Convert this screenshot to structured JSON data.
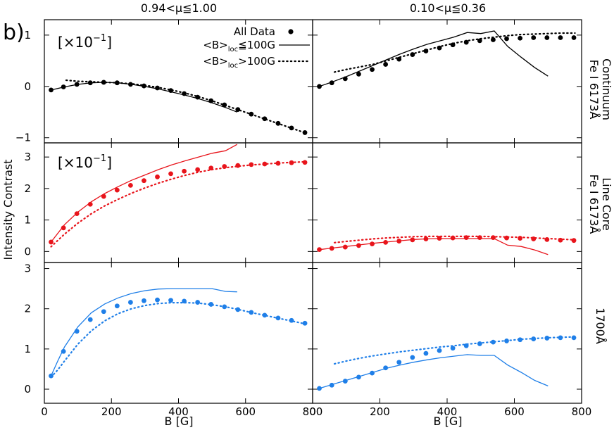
{
  "figure": {
    "panel_letter": "b)",
    "ylabel": "Intensity Contrast",
    "xlabel": "B [G]",
    "column_titles": [
      "0.94<μ≦1.00",
      "0.10<μ≦0.36"
    ],
    "row_labels": [
      {
        "line1": "Fe I 6173Å",
        "line2": "Continuum"
      },
      {
        "line1": "Fe I 6173Å",
        "line2": "Line Core"
      },
      {
        "line1": "1700Å",
        "line2": ""
      }
    ],
    "scale_note_main": "[×10",
    "scale_note_exp": "−1",
    "scale_note_end": "]",
    "legend": {
      "all_data": "All Data",
      "low_pre": "<B>",
      "low_sub": "loc",
      "low_post": "≦100G",
      "high_pre": "<B>",
      "high_sub": "loc",
      "high_post": ">100G"
    },
    "colors": {
      "row1": "#000000",
      "row2": "#e8141b",
      "row3": "#1f7fe8"
    }
  },
  "chart_data": [
    {
      "type": "scatter",
      "row": 0,
      "col": 0,
      "xlim": [
        0,
        800
      ],
      "ylim": [
        -1.1,
        1.3
      ],
      "yticks": [
        -1,
        0,
        1
      ],
      "xticks": [
        0,
        200,
        400,
        600,
        800
      ],
      "yscale_note": "×10⁻¹",
      "series": [
        {
          "name": "All Data",
          "style": "dots",
          "x": [
            20,
            57,
            97,
            137,
            177,
            217,
            257,
            297,
            337,
            377,
            417,
            457,
            497,
            537,
            577,
            617,
            657,
            697,
            737,
            777
          ],
          "y": [
            -0.07,
            -0.01,
            0.04,
            0.07,
            0.08,
            0.07,
            0.04,
            0.01,
            -0.03,
            -0.08,
            -0.14,
            -0.21,
            -0.28,
            -0.36,
            -0.45,
            -0.54,
            -0.63,
            -0.72,
            -0.81,
            -0.9
          ]
        },
        {
          "name": "<B>loc≦100G",
          "style": "solid",
          "x": [
            20,
            60,
            100,
            140,
            180,
            220,
            260,
            300,
            340,
            380,
            420,
            460,
            500,
            540,
            575
          ],
          "y": [
            -0.07,
            -0.01,
            0.04,
            0.07,
            0.08,
            0.07,
            0.04,
            0.0,
            -0.05,
            -0.11,
            -0.17,
            -0.24,
            -0.32,
            -0.41,
            -0.5
          ]
        },
        {
          "name": "<B>loc>100G",
          "style": "dotted",
          "x": [
            65,
            100,
            140,
            180,
            220,
            260,
            300,
            340,
            380,
            420,
            460,
            500,
            540,
            580,
            620,
            660,
            700,
            740,
            780
          ],
          "y": [
            0.12,
            0.1,
            0.09,
            0.08,
            0.07,
            0.05,
            0.02,
            -0.02,
            -0.07,
            -0.13,
            -0.2,
            -0.28,
            -0.37,
            -0.46,
            -0.55,
            -0.64,
            -0.73,
            -0.82,
            -0.91
          ]
        }
      ]
    },
    {
      "type": "scatter",
      "row": 0,
      "col": 1,
      "xlim": [
        0,
        800
      ],
      "ylim": [
        -1.1,
        1.3
      ],
      "yticks": [
        -1,
        0,
        1
      ],
      "xticks": [
        0,
        200,
        400,
        600,
        800
      ],
      "series": [
        {
          "name": "All Data",
          "style": "dots",
          "x": [
            20,
            57,
            97,
            137,
            177,
            217,
            257,
            297,
            337,
            377,
            417,
            457,
            497,
            537,
            577,
            617,
            657,
            697,
            737,
            777
          ],
          "y": [
            0.0,
            0.07,
            0.15,
            0.24,
            0.33,
            0.43,
            0.53,
            0.62,
            0.69,
            0.75,
            0.81,
            0.86,
            0.89,
            0.91,
            0.93,
            0.94,
            0.95,
            0.95,
            0.95,
            0.95
          ]
        },
        {
          "name": "<B>loc≦100G",
          "style": "solid",
          "x": [
            20,
            60,
            100,
            140,
            180,
            220,
            260,
            300,
            340,
            380,
            420,
            460,
            500,
            540,
            580,
            620,
            660,
            700
          ],
          "y": [
            0.0,
            0.09,
            0.19,
            0.3,
            0.41,
            0.52,
            0.63,
            0.73,
            0.82,
            0.89,
            0.96,
            1.05,
            1.03,
            1.08,
            0.78,
            0.57,
            0.37,
            0.2
          ]
        },
        {
          "name": "<B>loc>100G",
          "style": "dotted",
          "x": [
            65,
            100,
            140,
            180,
            220,
            260,
            300,
            340,
            380,
            420,
            460,
            500,
            540,
            580,
            620,
            660,
            700,
            740,
            780
          ],
          "y": [
            0.28,
            0.33,
            0.38,
            0.43,
            0.5,
            0.57,
            0.64,
            0.71,
            0.78,
            0.84,
            0.89,
            0.93,
            0.96,
            0.99,
            1.01,
            1.02,
            1.03,
            1.04,
            1.04
          ]
        }
      ]
    },
    {
      "type": "scatter",
      "row": 1,
      "col": 0,
      "xlim": [
        0,
        800
      ],
      "ylim": [
        -0.35,
        3.45
      ],
      "yticks": [
        0,
        1,
        2,
        3
      ],
      "xticks": [
        0,
        200,
        400,
        600,
        800
      ],
      "yscale_note": "×10⁻¹",
      "series": [
        {
          "name": "All Data",
          "style": "dots",
          "x": [
            20,
            57,
            97,
            137,
            177,
            217,
            257,
            297,
            337,
            377,
            417,
            457,
            497,
            537,
            577,
            617,
            657,
            697,
            737,
            777
          ],
          "y": [
            0.3,
            0.75,
            1.2,
            1.5,
            1.75,
            1.95,
            2.1,
            2.25,
            2.37,
            2.47,
            2.55,
            2.6,
            2.65,
            2.7,
            2.73,
            2.76,
            2.78,
            2.8,
            2.82,
            2.83
          ]
        },
        {
          "name": "<B>loc≦100G",
          "style": "solid",
          "x": [
            20,
            60,
            100,
            140,
            180,
            220,
            260,
            300,
            340,
            380,
            420,
            460,
            500,
            540,
            575
          ],
          "y": [
            0.3,
            0.85,
            1.25,
            1.58,
            1.84,
            2.06,
            2.26,
            2.43,
            2.6,
            2.75,
            2.88,
            3.0,
            3.12,
            3.2,
            3.4
          ]
        },
        {
          "name": "<B>loc>100G",
          "style": "dotted",
          "x": [
            20,
            60,
            100,
            140,
            180,
            220,
            260,
            300,
            340,
            380,
            420,
            460,
            500,
            540,
            580,
            620,
            660,
            700,
            740,
            780
          ],
          "y": [
            0.15,
            0.55,
            0.9,
            1.2,
            1.45,
            1.66,
            1.85,
            2.02,
            2.17,
            2.3,
            2.42,
            2.52,
            2.6,
            2.66,
            2.71,
            2.75,
            2.78,
            2.81,
            2.83,
            2.85
          ]
        }
      ]
    },
    {
      "type": "scatter",
      "row": 1,
      "col": 1,
      "xlim": [
        0,
        800
      ],
      "ylim": [
        -0.35,
        3.45
      ],
      "yticks": [
        0,
        1,
        2,
        3
      ],
      "xticks": [
        0,
        200,
        400,
        600,
        800
      ],
      "series": [
        {
          "name": "All Data",
          "style": "dots",
          "x": [
            20,
            57,
            97,
            137,
            177,
            217,
            257,
            297,
            337,
            377,
            417,
            457,
            497,
            537,
            577,
            617,
            657,
            697,
            737,
            777
          ],
          "y": [
            0.06,
            0.1,
            0.14,
            0.19,
            0.24,
            0.29,
            0.33,
            0.37,
            0.4,
            0.42,
            0.43,
            0.44,
            0.44,
            0.44,
            0.43,
            0.42,
            0.4,
            0.38,
            0.36,
            0.35
          ]
        },
        {
          "name": "<B>loc≦100G",
          "style": "solid",
          "x": [
            20,
            60,
            100,
            140,
            180,
            220,
            260,
            300,
            340,
            380,
            420,
            460,
            500,
            540,
            580,
            620,
            660,
            700
          ],
          "y": [
            0.06,
            0.11,
            0.16,
            0.21,
            0.26,
            0.3,
            0.34,
            0.38,
            0.4,
            0.41,
            0.41,
            0.41,
            0.41,
            0.41,
            0.2,
            0.16,
            0.05,
            -0.1
          ]
        },
        {
          "name": "<B>loc>100G",
          "style": "dotted",
          "x": [
            65,
            100,
            140,
            180,
            220,
            260,
            300,
            340,
            380,
            420,
            460,
            500,
            540,
            580,
            620,
            660,
            700,
            740,
            780
          ],
          "y": [
            0.28,
            0.32,
            0.36,
            0.4,
            0.43,
            0.45,
            0.47,
            0.48,
            0.48,
            0.48,
            0.48,
            0.48,
            0.47,
            0.46,
            0.45,
            0.43,
            0.41,
            0.39,
            0.37
          ]
        }
      ]
    },
    {
      "type": "scatter",
      "row": 2,
      "col": 0,
      "xlim": [
        0,
        800
      ],
      "ylim": [
        -0.35,
        3.15
      ],
      "yticks": [
        0,
        1,
        2,
        3
      ],
      "xticks": [
        0,
        200,
        400,
        600,
        800
      ],
      "series": [
        {
          "name": "All Data",
          "style": "dots",
          "x": [
            20,
            57,
            97,
            137,
            177,
            217,
            257,
            297,
            337,
            377,
            417,
            457,
            497,
            537,
            577,
            617,
            657,
            697,
            737,
            777
          ],
          "y": [
            0.33,
            0.94,
            1.44,
            1.73,
            1.93,
            2.07,
            2.16,
            2.2,
            2.22,
            2.21,
            2.19,
            2.16,
            2.11,
            2.05,
            1.98,
            1.91,
            1.84,
            1.77,
            1.71,
            1.64
          ]
        },
        {
          "name": "<B>loc≦100G",
          "style": "solid",
          "x": [
            20,
            40,
            60,
            100,
            140,
            180,
            220,
            260,
            300,
            340,
            380,
            420,
            460,
            500,
            540,
            575
          ],
          "y": [
            0.33,
            0.7,
            1.05,
            1.55,
            1.9,
            2.12,
            2.27,
            2.38,
            2.45,
            2.49,
            2.5,
            2.5,
            2.5,
            2.5,
            2.43,
            2.42
          ]
        },
        {
          "name": "<B>loc>100G",
          "style": "dotted",
          "x": [
            20,
            40,
            60,
            100,
            140,
            180,
            220,
            260,
            300,
            340,
            380,
            420,
            460,
            500,
            540,
            580,
            620,
            660,
            700,
            740,
            780
          ],
          "y": [
            0.3,
            0.48,
            0.7,
            1.12,
            1.45,
            1.7,
            1.88,
            2.0,
            2.08,
            2.13,
            2.15,
            2.15,
            2.14,
            2.1,
            2.05,
            1.98,
            1.9,
            1.83,
            1.76,
            1.69,
            1.62
          ]
        }
      ]
    },
    {
      "type": "scatter",
      "row": 2,
      "col": 1,
      "xlim": [
        0,
        800
      ],
      "ylim": [
        -0.35,
        3.15
      ],
      "yticks": [
        0,
        1,
        2,
        3
      ],
      "xticks": [
        0,
        200,
        400,
        600,
        800
      ],
      "series": [
        {
          "name": "All Data",
          "style": "dots",
          "x": [
            20,
            57,
            97,
            137,
            177,
            217,
            257,
            297,
            337,
            377,
            417,
            457,
            497,
            537,
            577,
            617,
            657,
            697,
            737,
            777
          ],
          "y": [
            0.02,
            0.1,
            0.2,
            0.3,
            0.4,
            0.53,
            0.67,
            0.79,
            0.89,
            0.96,
            1.02,
            1.08,
            1.13,
            1.17,
            1.2,
            1.23,
            1.25,
            1.27,
            1.28,
            1.28
          ]
        },
        {
          "name": "<B>loc≦100G",
          "style": "solid",
          "x": [
            20,
            60,
            100,
            140,
            180,
            220,
            260,
            300,
            340,
            380,
            420,
            460,
            500,
            540,
            580,
            620,
            660,
            700
          ],
          "y": [
            0.02,
            0.12,
            0.22,
            0.32,
            0.42,
            0.52,
            0.6,
            0.67,
            0.73,
            0.78,
            0.82,
            0.86,
            0.84,
            0.84,
            0.6,
            0.42,
            0.22,
            0.08
          ]
        },
        {
          "name": "<B>loc>100G",
          "style": "dotted",
          "x": [
            65,
            100,
            140,
            180,
            220,
            260,
            300,
            340,
            380,
            420,
            460,
            500,
            540,
            580,
            620,
            660,
            700,
            740,
            780
          ],
          "y": [
            0.63,
            0.7,
            0.77,
            0.83,
            0.88,
            0.93,
            0.97,
            1.01,
            1.05,
            1.08,
            1.12,
            1.15,
            1.18,
            1.21,
            1.24,
            1.26,
            1.28,
            1.29,
            1.3
          ]
        }
      ]
    }
  ]
}
